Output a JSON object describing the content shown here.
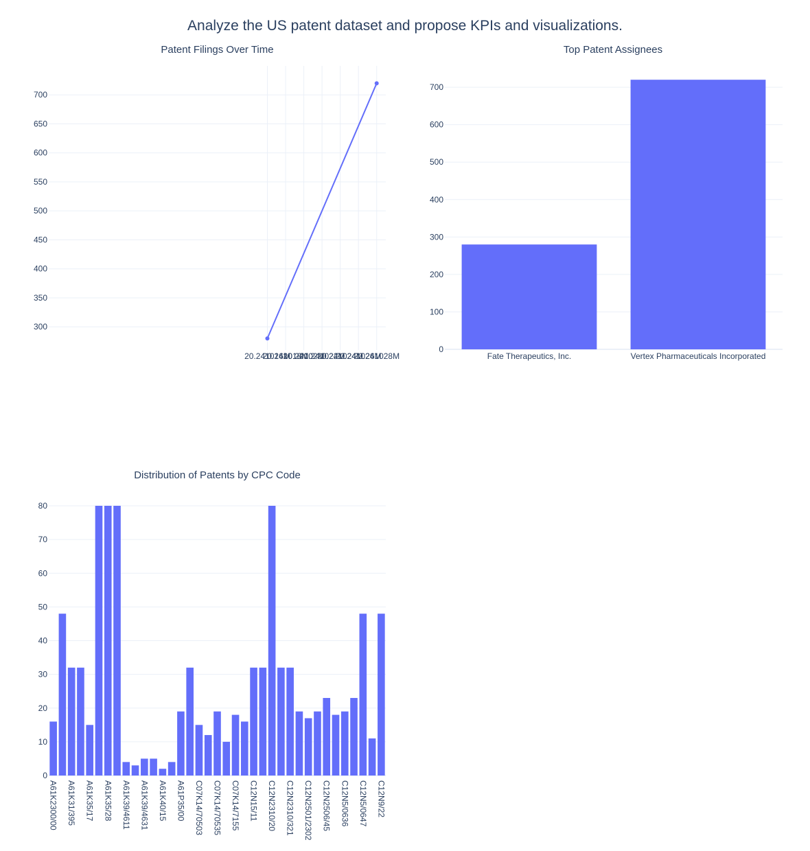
{
  "title": "Analyze the US patent dataset and propose KPIs and visualizations.",
  "colors": {
    "accent": "#636efa",
    "grid": "#ebf0f8",
    "text": "#2a3f5f"
  },
  "chart_data": [
    {
      "id": "filings",
      "type": "line",
      "title": "Patent Filings Over Time",
      "x": [
        20241016,
        20241028
      ],
      "y": [
        280,
        720
      ],
      "xlim": [
        20240992,
        20241029
      ],
      "xticks": [
        20241016,
        20241018,
        20241020,
        20241022,
        20241024,
        20241026,
        20241028
      ],
      "xtick_labels": [
        "20.241016M",
        "20.241018M",
        "20.24102M",
        "20.241022M",
        "20.241024M",
        "20.241026M",
        "20.241028M"
      ],
      "ylim": [
        260,
        750
      ],
      "yticks": [
        300,
        350,
        400,
        450,
        500,
        550,
        600,
        650,
        700
      ],
      "grid": true
    },
    {
      "id": "assignees",
      "type": "bar",
      "title": "Top Patent Assignees",
      "categories": [
        "Fate Therapeutics, Inc.",
        "Vertex Pharmaceuticals Incorporated"
      ],
      "values": [
        280,
        720
      ],
      "ylim": [
        0,
        757
      ],
      "yticks": [
        0,
        100,
        200,
        300,
        400,
        500,
        600,
        700
      ],
      "grid": true
    },
    {
      "id": "cpc",
      "type": "bar",
      "title": "Distribution of Patents by CPC Code",
      "categories": [
        "A61K2300/00",
        "",
        "A61K31/395",
        "",
        "A61K35/17",
        "",
        "A61K35/28",
        "",
        "A61K39/4611",
        "",
        "A61K39/4631",
        "",
        "A61K40/15",
        "",
        "A61P35/00",
        "",
        "C07K14/70503",
        "",
        "C07K14/70535",
        "",
        "C07K14/7155",
        "",
        "C12N15/11",
        "",
        "C12N2310/20",
        "",
        "C12N2310/321",
        "",
        "C12N2501/2302",
        "",
        "C12N2506/45",
        "",
        "C12N5/0636",
        "",
        "C12N5/0647",
        "",
        "C12N9/22"
      ],
      "values": [
        16,
        48,
        32,
        32,
        15,
        80,
        80,
        80,
        4,
        3,
        5,
        5,
        2,
        4,
        19,
        32,
        15,
        12,
        19,
        10,
        18,
        16,
        32,
        32,
        80,
        32,
        32,
        19,
        17,
        19,
        23,
        18,
        19,
        23,
        48,
        11,
        48
      ],
      "ylim": [
        0,
        80
      ],
      "yticks": [
        0,
        10,
        20,
        30,
        40,
        50,
        60,
        70,
        80
      ],
      "grid": true
    }
  ]
}
